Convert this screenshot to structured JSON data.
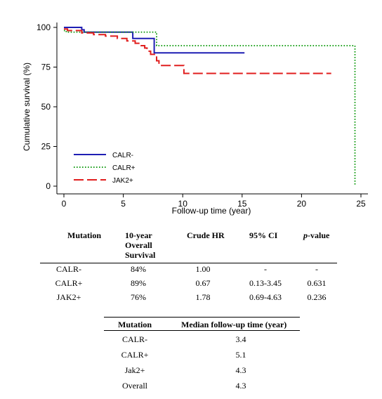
{
  "chart_data": {
    "type": "line",
    "step": true,
    "title": "",
    "xlabel": "Follow-up time (year)",
    "ylabel": "Cumulative survival (%)",
    "xlim": [
      0,
      25
    ],
    "ylim": [
      0,
      100
    ],
    "xticks": [
      0,
      5,
      10,
      15,
      20,
      25
    ],
    "yticks": [
      0,
      25,
      50,
      75,
      100
    ],
    "grid": false,
    "legend_position": "bottom-left inside",
    "series": [
      {
        "name": "CALR-",
        "color": "#1e1eb4",
        "style": "solid",
        "x": [
          0,
          1.5,
          1.5,
          1.7,
          1.7,
          5.8,
          5.8,
          7.6,
          7.6,
          15.2
        ],
        "y": [
          100,
          100,
          98.5,
          98.5,
          97,
          97,
          93,
          93,
          84,
          84
        ]
      },
      {
        "name": "CALR+",
        "color": "#1ea01e",
        "style": "dotted",
        "x": [
          0,
          0.2,
          0.2,
          7.8,
          7.8,
          24.5,
          24.5
        ],
        "y": [
          98,
          98,
          97,
          97,
          88.5,
          88.5,
          0
        ]
      },
      {
        "name": "JAK2+",
        "color": "#e01e1e",
        "style": "dashed",
        "x": [
          0,
          0.3,
          0.3,
          1.5,
          1.5,
          2.5,
          2.5,
          3.5,
          3.5,
          4.5,
          4.5,
          5.3,
          5.3,
          6.0,
          6.0,
          6.5,
          6.5,
          6.8,
          6.8,
          7.0,
          7.0,
          7.3,
          7.3,
          7.8,
          7.8,
          8.0,
          8.0,
          10.1,
          10.1,
          22.5
        ],
        "y": [
          99,
          99,
          98,
          98,
          96.5,
          96.5,
          95.5,
          95.5,
          94.5,
          94.5,
          93,
          93,
          91.5,
          91.5,
          90,
          90,
          88.5,
          88.5,
          87,
          87,
          85,
          85,
          83,
          83,
          79,
          79,
          76,
          76,
          71,
          71
        ]
      }
    ]
  },
  "table1": {
    "headers": [
      "Mutation",
      "10-year\nOverall\nSurvival",
      "Crude HR",
      "95% CI",
      "p-value"
    ],
    "header_lines": [
      "10-year",
      "Overall",
      "Survival"
    ],
    "pvalue_italic": "p",
    "pvalue_rest": "-value",
    "rows": [
      [
        "CALR-",
        "84%",
        "1.00",
        "-",
        "-"
      ],
      [
        "CALR+",
        "89%",
        "0.67",
        "0.13-3.45",
        "0.631"
      ],
      [
        "JAK2+",
        "76%",
        "1.78",
        "0.69-4.63",
        "0.236"
      ]
    ]
  },
  "table2": {
    "headers": [
      "Mutation",
      "Median follow-up time (year)"
    ],
    "rows": [
      [
        "CALR-",
        "3.4"
      ],
      [
        "CALR+",
        "5.1"
      ],
      [
        "Jak2+",
        "4.3"
      ],
      [
        "Overall",
        "4.3"
      ]
    ]
  }
}
